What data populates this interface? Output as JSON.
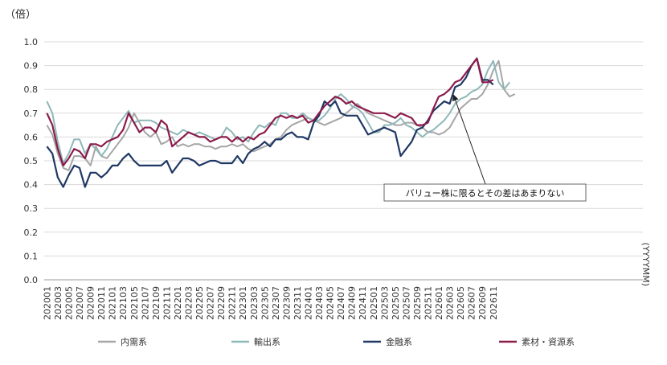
{
  "chart_data": {
    "type": "line",
    "unit_label": "（倍）",
    "xlabel": "(YYYYMM)",
    "ylim": [
      0.0,
      1.0
    ],
    "y_ticks": [
      "0.0",
      "0.1",
      "0.2",
      "0.3",
      "0.4",
      "0.5",
      "0.6",
      "0.7",
      "0.8",
      "0.9",
      "1.0"
    ],
    "x_tick_labels": [
      "202001",
      "202003",
      "202005",
      "202007",
      "202009",
      "202011",
      "202101",
      "202103",
      "202105",
      "202107",
      "202109",
      "202111",
      "202201",
      "202203",
      "202205",
      "202207",
      "202209",
      "202211",
      "202301",
      "202303",
      "202305",
      "202307",
      "202309",
      "202311",
      "202401",
      "202403",
      "202405",
      "202407",
      "202409",
      "202411",
      "202501",
      "202503",
      "202505",
      "202507",
      "202509",
      "202511",
      "202601",
      "202603",
      "202605"
    ],
    "x_tick_labels_extra": [
      "202607",
      "202609",
      "202611"
    ],
    "grid": "horizontal",
    "legend_position": "bottom",
    "annotation": {
      "text": "バリュー株に限るとその差はあまりない",
      "target_month": "202604",
      "target_value": 0.79
    },
    "series": [
      {
        "name": "内需系",
        "color": "#a6a6a6",
        "values": [
          0.65,
          0.61,
          0.53,
          0.47,
          0.46,
          0.52,
          0.52,
          0.51,
          0.48,
          0.56,
          0.52,
          0.51,
          0.54,
          0.57,
          0.6,
          0.64,
          0.7,
          0.66,
          0.62,
          0.6,
          0.62,
          0.57,
          0.58,
          0.6,
          0.56,
          0.57,
          0.56,
          0.57,
          0.57,
          0.56,
          0.56,
          0.55,
          0.56,
          0.56,
          0.57,
          0.56,
          0.57,
          0.55,
          0.54,
          0.55,
          0.56,
          0.57,
          0.59,
          0.6,
          0.63,
          0.65,
          0.66,
          0.67,
          0.68,
          0.67,
          0.66,
          0.65,
          0.66,
          0.67,
          0.68,
          0.7,
          0.72,
          0.74,
          0.72,
          0.7,
          0.69,
          0.68,
          0.67,
          0.66,
          0.65,
          0.65,
          0.66,
          0.66,
          0.65,
          0.64,
          0.62,
          0.62,
          0.61,
          0.62,
          0.64,
          0.68,
          0.72,
          0.74,
          0.76,
          0.76,
          0.78,
          0.82,
          0.88,
          0.92,
          0.8,
          0.77,
          0.78
        ]
      },
      {
        "name": "輸出系",
        "color": "#8fb7b8",
        "values": [
          0.75,
          0.7,
          0.58,
          0.49,
          0.53,
          0.59,
          0.59,
          0.53,
          0.57,
          0.55,
          0.52,
          0.55,
          0.6,
          0.65,
          0.68,
          0.71,
          0.66,
          0.67,
          0.67,
          0.67,
          0.66,
          0.64,
          0.63,
          0.62,
          0.61,
          0.63,
          0.62,
          0.61,
          0.62,
          0.61,
          0.6,
          0.59,
          0.6,
          0.64,
          0.62,
          0.59,
          0.6,
          0.58,
          0.62,
          0.65,
          0.64,
          0.66,
          0.65,
          0.7,
          0.7,
          0.68,
          0.68,
          0.7,
          0.68,
          0.67,
          0.67,
          0.69,
          0.72,
          0.76,
          0.78,
          0.76,
          0.73,
          0.72,
          0.7,
          0.66,
          0.62,
          0.62,
          0.65,
          0.65,
          0.66,
          0.68,
          0.65,
          0.64,
          0.62,
          0.6,
          0.62,
          0.63,
          0.65,
          0.67,
          0.7,
          0.74,
          0.76,
          0.77,
          0.79,
          0.8,
          0.82,
          0.88,
          0.92,
          0.83,
          0.8,
          0.83
        ]
      },
      {
        "name": "金融系",
        "color": "#1f3864",
        "values": [
          0.56,
          0.53,
          0.43,
          0.39,
          0.44,
          0.48,
          0.47,
          0.39,
          0.45,
          0.45,
          0.43,
          0.45,
          0.48,
          0.48,
          0.51,
          0.53,
          0.5,
          0.48,
          0.48,
          0.48,
          0.48,
          0.48,
          0.5,
          0.45,
          0.48,
          0.51,
          0.51,
          0.5,
          0.48,
          0.49,
          0.5,
          0.5,
          0.49,
          0.49,
          0.49,
          0.52,
          0.49,
          0.53,
          0.55,
          0.56,
          0.58,
          0.56,
          0.59,
          0.59,
          0.61,
          0.62,
          0.6,
          0.6,
          0.59,
          0.66,
          0.69,
          0.75,
          0.73,
          0.75,
          0.7,
          0.69,
          0.69,
          0.69,
          0.65,
          0.61,
          0.62,
          0.63,
          0.64,
          0.63,
          0.62,
          0.52,
          0.55,
          0.58,
          0.63,
          0.64,
          0.67,
          0.71,
          0.73,
          0.75,
          0.74,
          0.81,
          0.82,
          0.85,
          0.9,
          0.93,
          0.84,
          0.84,
          0.82
        ]
      },
      {
        "name": "素材・資源系",
        "color": "#8b1a4a",
        "values": [
          0.7,
          0.65,
          0.55,
          0.48,
          0.51,
          0.55,
          0.54,
          0.51,
          0.57,
          0.57,
          0.56,
          0.58,
          0.59,
          0.6,
          0.63,
          0.7,
          0.66,
          0.62,
          0.64,
          0.64,
          0.62,
          0.67,
          0.65,
          0.56,
          0.58,
          0.6,
          0.62,
          0.61,
          0.6,
          0.6,
          0.58,
          0.59,
          0.6,
          0.6,
          0.58,
          0.6,
          0.58,
          0.6,
          0.59,
          0.61,
          0.62,
          0.65,
          0.68,
          0.69,
          0.68,
          0.69,
          0.68,
          0.69,
          0.66,
          0.67,
          0.7,
          0.73,
          0.75,
          0.77,
          0.76,
          0.74,
          0.75,
          0.73,
          0.72,
          0.71,
          0.7,
          0.7,
          0.7,
          0.69,
          0.68,
          0.7,
          0.69,
          0.68,
          0.65,
          0.65,
          0.66,
          0.72,
          0.77,
          0.78,
          0.8,
          0.83,
          0.84,
          0.87,
          0.9,
          0.93,
          0.83,
          0.83,
          0.84
        ]
      }
    ]
  }
}
